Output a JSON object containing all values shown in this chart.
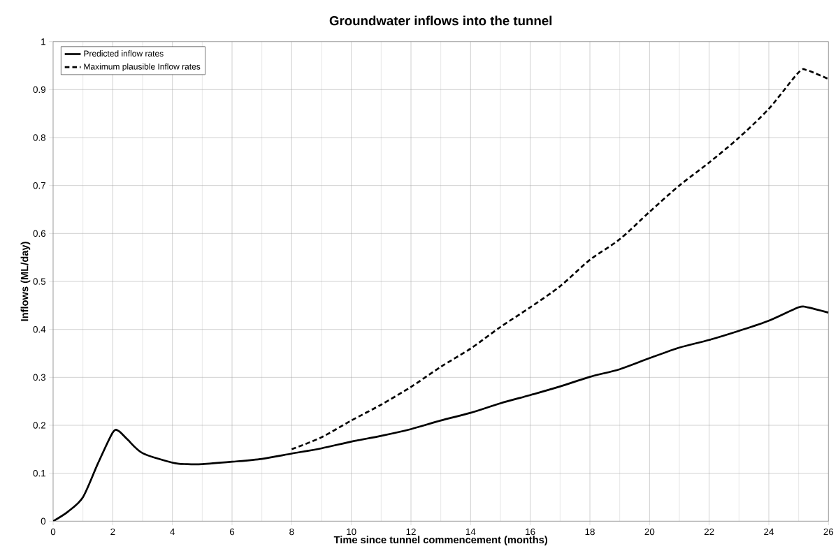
{
  "chart_data": {
    "type": "line",
    "title": "Groundwater inflows into the tunnel",
    "xlabel": "Time since tunnel commencement (months)",
    "ylabel": "Inflows (ML/day)",
    "xlim": [
      0,
      26
    ],
    "xticks": [
      0,
      2,
      4,
      6,
      8,
      10,
      12,
      14,
      16,
      18,
      20,
      22,
      24,
      26
    ],
    "ylim": [
      0,
      1
    ],
    "yticks": [
      0,
      0.1,
      0.2,
      0.3,
      0.4,
      0.5,
      0.6,
      0.7,
      0.8,
      0.9,
      1
    ],
    "grid": true,
    "legend": "top left",
    "marker": "none",
    "series": [
      {
        "name": "Predicted inflow rates",
        "color": "#000000",
        "line_style": "solid",
        "x": [
          0,
          0.5,
          1,
          1.5,
          2,
          2.2,
          2.5,
          3,
          4,
          4.5,
          5,
          6,
          7,
          8,
          9,
          10,
          11,
          12,
          13,
          14,
          15,
          16,
          17,
          18,
          19,
          20,
          21,
          22,
          23,
          24,
          25,
          25.3,
          26
        ],
        "values": [
          0,
          0.02,
          0.05,
          0.12,
          0.185,
          0.188,
          0.17,
          0.142,
          0.122,
          0.119,
          0.119,
          0.124,
          0.13,
          0.141,
          0.152,
          0.166,
          0.178,
          0.192,
          0.21,
          0.226,
          0.246,
          0.263,
          0.281,
          0.301,
          0.317,
          0.34,
          0.362,
          0.378,
          0.397,
          0.418,
          0.446,
          0.446,
          0.435
        ]
      },
      {
        "name": "Maximum plausible Inflow rates",
        "color": "#000000",
        "line_style": "dashed",
        "x": [
          8,
          9,
          10,
          11,
          12,
          13,
          14,
          15,
          16,
          17,
          18,
          19,
          20,
          21,
          22,
          23,
          24,
          25,
          25.3,
          26
        ],
        "values": [
          0.15,
          0.175,
          0.21,
          0.243,
          0.28,
          0.322,
          0.36,
          0.405,
          0.446,
          0.49,
          0.545,
          0.588,
          0.645,
          0.7,
          0.748,
          0.8,
          0.86,
          0.936,
          0.94,
          0.922
        ]
      }
    ]
  }
}
